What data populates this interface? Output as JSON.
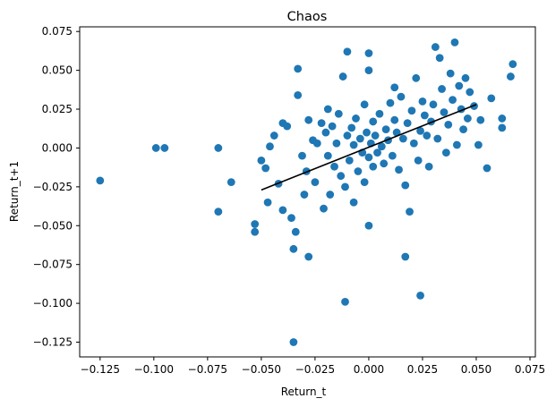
{
  "chart_data": {
    "type": "scatter",
    "title": "Chaos",
    "xlabel": "Return_t",
    "ylabel": "Return_t+1",
    "xlim": [
      -0.1345,
      0.0775
    ],
    "ylim": [
      -0.1345,
      0.078
    ],
    "xticks": [
      -0.125,
      -0.1,
      -0.075,
      -0.05,
      -0.025,
      0.0,
      0.025,
      0.05,
      0.075
    ],
    "xtick_labels": [
      "−0.125",
      "−0.100",
      "−0.075",
      "−0.050",
      "−0.025",
      "0.000",
      "0.025",
      "0.050",
      "0.075"
    ],
    "yticks": [
      -0.125,
      -0.1,
      -0.075,
      -0.05,
      -0.025,
      0.0,
      0.025,
      0.05,
      0.075
    ],
    "ytick_labels": [
      "−0.125",
      "−0.100",
      "−0.075",
      "−0.050",
      "−0.025",
      "0.000",
      "0.025",
      "0.050",
      "0.075"
    ],
    "grid": false,
    "point_color": "#1f77b4",
    "series": [
      {
        "points": [
          [
            -0.125,
            -0.021
          ],
          [
            -0.099,
            0.0
          ],
          [
            -0.095,
            0.0
          ],
          [
            -0.07,
            0.0
          ],
          [
            -0.07,
            -0.041
          ],
          [
            -0.064,
            -0.022
          ],
          [
            -0.053,
            -0.049
          ],
          [
            -0.053,
            -0.054
          ],
          [
            -0.05,
            -0.008
          ],
          [
            -0.048,
            -0.013
          ],
          [
            -0.047,
            -0.035
          ],
          [
            -0.046,
            0.001
          ],
          [
            -0.044,
            0.008
          ],
          [
            -0.042,
            -0.023
          ],
          [
            -0.04,
            0.016
          ],
          [
            -0.04,
            -0.04
          ],
          [
            -0.038,
            0.014
          ],
          [
            -0.036,
            -0.045
          ],
          [
            -0.035,
            -0.065
          ],
          [
            -0.035,
            -0.125
          ],
          [
            -0.034,
            -0.054
          ],
          [
            -0.033,
            0.034
          ],
          [
            -0.033,
            0.051
          ],
          [
            -0.031,
            -0.005
          ],
          [
            -0.03,
            -0.03
          ],
          [
            -0.029,
            -0.015
          ],
          [
            -0.028,
            0.018
          ],
          [
            -0.028,
            -0.07
          ],
          [
            -0.026,
            0.005
          ],
          [
            -0.025,
            -0.022
          ],
          [
            -0.024,
            0.003
          ],
          [
            -0.022,
            0.016
          ],
          [
            -0.021,
            -0.039
          ],
          [
            -0.02,
            0.01
          ],
          [
            -0.019,
            0.025
          ],
          [
            -0.019,
            -0.005
          ],
          [
            -0.018,
            -0.03
          ],
          [
            -0.017,
            0.014
          ],
          [
            -0.016,
            -0.012
          ],
          [
            -0.015,
            0.003
          ],
          [
            -0.014,
            0.022
          ],
          [
            -0.013,
            -0.018
          ],
          [
            -0.012,
            0.046
          ],
          [
            -0.011,
            -0.099
          ],
          [
            -0.011,
            -0.025
          ],
          [
            -0.01,
            0.062
          ],
          [
            -0.01,
            0.008
          ],
          [
            -0.009,
            -0.008
          ],
          [
            -0.008,
            0.013
          ],
          [
            -0.007,
            -0.035
          ],
          [
            -0.007,
            0.002
          ],
          [
            -0.006,
            0.019
          ],
          [
            -0.005,
            -0.015
          ],
          [
            -0.004,
            0.006
          ],
          [
            -0.003,
            -0.003
          ],
          [
            -0.002,
            0.028
          ],
          [
            -0.002,
            -0.022
          ],
          [
            -0.001,
            0.01
          ],
          [
            0.0,
            -0.05
          ],
          [
            0.0,
            0.061
          ],
          [
            0.0,
            0.05
          ],
          [
            0.0,
            -0.006
          ],
          [
            0.001,
            0.003
          ],
          [
            0.002,
            -0.012
          ],
          [
            0.002,
            0.017
          ],
          [
            0.003,
            0.008
          ],
          [
            0.004,
            -0.003
          ],
          [
            0.005,
            0.022
          ],
          [
            0.006,
            0.001
          ],
          [
            0.007,
            -0.01
          ],
          [
            0.008,
            0.012
          ],
          [
            0.009,
            0.005
          ],
          [
            0.01,
            0.029
          ],
          [
            0.011,
            -0.005
          ],
          [
            0.012,
            0.018
          ],
          [
            0.012,
            0.039
          ],
          [
            0.013,
            0.01
          ],
          [
            0.014,
            -0.014
          ],
          [
            0.015,
            0.033
          ],
          [
            0.016,
            0.006
          ],
          [
            0.017,
            -0.024
          ],
          [
            0.017,
            -0.07
          ],
          [
            0.018,
            0.016
          ],
          [
            0.019,
            -0.041
          ],
          [
            0.02,
            0.024
          ],
          [
            0.021,
            0.003
          ],
          [
            0.022,
            0.045
          ],
          [
            0.023,
            -0.008
          ],
          [
            0.024,
            -0.095
          ],
          [
            0.024,
            0.011
          ],
          [
            0.025,
            0.03
          ],
          [
            0.026,
            0.021
          ],
          [
            0.027,
            0.008
          ],
          [
            0.028,
            -0.012
          ],
          [
            0.029,
            0.017
          ],
          [
            0.03,
            0.028
          ],
          [
            0.031,
            0.065
          ],
          [
            0.032,
            0.006
          ],
          [
            0.033,
            0.058
          ],
          [
            0.034,
            0.038
          ],
          [
            0.035,
            0.023
          ],
          [
            0.036,
            -0.003
          ],
          [
            0.037,
            0.015
          ],
          [
            0.038,
            0.048
          ],
          [
            0.039,
            0.031
          ],
          [
            0.04,
            0.068
          ],
          [
            0.041,
            0.002
          ],
          [
            0.042,
            0.04
          ],
          [
            0.043,
            0.025
          ],
          [
            0.044,
            0.012
          ],
          [
            0.045,
            0.045
          ],
          [
            0.046,
            0.019
          ],
          [
            0.047,
            0.036
          ],
          [
            0.049,
            0.027
          ],
          [
            0.051,
            0.002
          ],
          [
            0.052,
            0.018
          ],
          [
            0.055,
            -0.013
          ],
          [
            0.057,
            0.032
          ],
          [
            0.062,
            0.019
          ],
          [
            0.062,
            0.013
          ],
          [
            0.066,
            0.046
          ],
          [
            0.067,
            0.054
          ]
        ]
      }
    ],
    "trend_line": {
      "color": "#000000",
      "x": [
        -0.05,
        0.05
      ],
      "y": [
        -0.027,
        0.028
      ]
    }
  }
}
